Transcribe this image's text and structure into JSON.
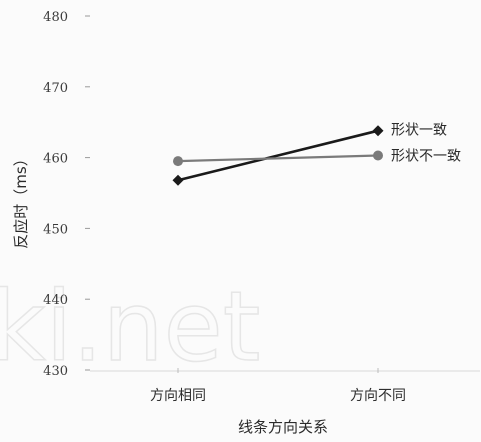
{
  "chart_data": {
    "type": "line",
    "title": "",
    "xlabel": "线条方向关系",
    "ylabel": "反应时（ms）",
    "categories": [
      "方向相同",
      "方向不同"
    ],
    "y_tick_labels": [
      "430",
      "440",
      "450",
      "460",
      "470",
      "480"
    ],
    "y_ticks": [
      430,
      440,
      450,
      460,
      470,
      480
    ],
    "ylim": [
      430,
      480
    ],
    "grid": false,
    "legend": "inline-right",
    "series": [
      {
        "name": "形状一致",
        "values": [
          456.8,
          463.8
        ],
        "color": "#1a1a1a",
        "marker": "diamond"
      },
      {
        "name": "形状不一致",
        "values": [
          459.5,
          460.3
        ],
        "color": "#7a7a7a",
        "marker": "circle"
      }
    ]
  },
  "watermark": "ki.net"
}
